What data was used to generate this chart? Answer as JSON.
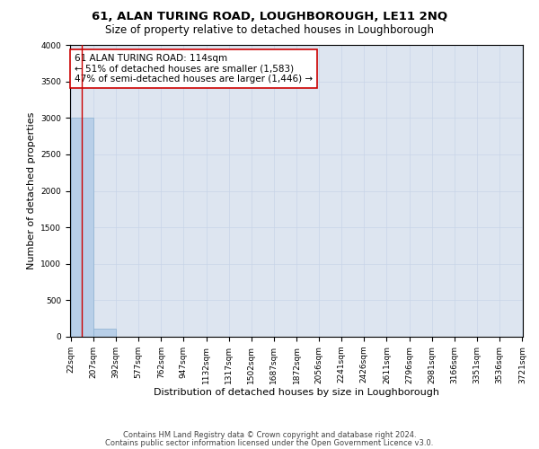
{
  "title": "61, ALAN TURING ROAD, LOUGHBOROUGH, LE11 2NQ",
  "subtitle": "Size of property relative to detached houses in Loughborough",
  "xlabel": "Distribution of detached houses by size in Loughborough",
  "ylabel": "Number of detached properties",
  "bin_edges": [
    22,
    207,
    392,
    577,
    762,
    947,
    1132,
    1317,
    1502,
    1687,
    1872,
    2056,
    2241,
    2426,
    2611,
    2796,
    2981,
    3166,
    3351,
    3536,
    3721
  ],
  "bin_counts": [
    2998,
    115,
    0,
    0,
    0,
    0,
    0,
    0,
    0,
    0,
    0,
    0,
    0,
    0,
    0,
    0,
    0,
    0,
    0,
    0
  ],
  "bar_color": "#b8cfe8",
  "bar_edge_color": "#8ab0d0",
  "property_line_x": 114,
  "property_line_color": "#cc0000",
  "ylim": [
    0,
    4000
  ],
  "yticks": [
    0,
    500,
    1000,
    1500,
    2000,
    2500,
    3000,
    3500,
    4000
  ],
  "annotation_title": "61 ALAN TURING ROAD: 114sqm",
  "annotation_line1": "← 51% of detached houses are smaller (1,583)",
  "annotation_line2": "47% of semi-detached houses are larger (1,446) →",
  "annotation_box_color": "#cc0000",
  "grid_color": "#c8d4e8",
  "background_color": "#dde5f0",
  "footer_line1": "Contains HM Land Registry data © Crown copyright and database right 2024.",
  "footer_line2": "Contains public sector information licensed under the Open Government Licence v3.0.",
  "title_fontsize": 9.5,
  "subtitle_fontsize": 8.5,
  "xlabel_fontsize": 8,
  "ylabel_fontsize": 8,
  "tick_fontsize": 6.5,
  "annotation_fontsize": 7.5,
  "footer_fontsize": 6
}
